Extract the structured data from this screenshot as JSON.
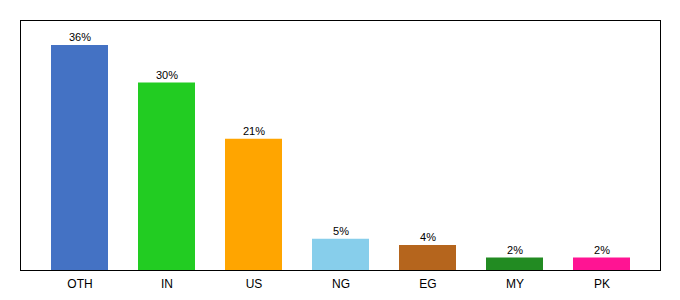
{
  "chart_data": {
    "type": "bar",
    "categories": [
      "OTH",
      "IN",
      "US",
      "NG",
      "EG",
      "MY",
      "PK"
    ],
    "values": [
      36,
      30,
      21,
      5,
      4,
      2,
      2
    ],
    "value_labels": [
      "36%",
      "30%",
      "21%",
      "5%",
      "4%",
      "2%",
      "2%"
    ],
    "colors": [
      "#4472C4",
      "#22CC22",
      "#FFA500",
      "#87CEEB",
      "#B5651D",
      "#228B22",
      "#FF1493"
    ],
    "ylim": [
      0,
      40
    ],
    "grid": false,
    "data_labels": true,
    "tick_labels": "x"
  }
}
